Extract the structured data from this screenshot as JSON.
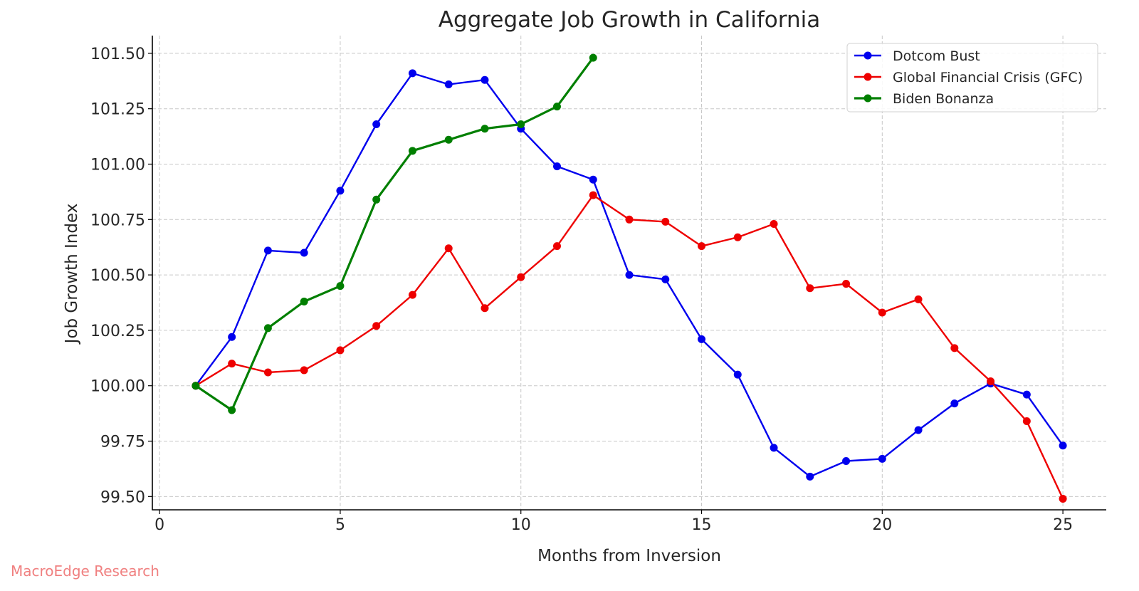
{
  "chart_data": {
    "type": "line",
    "title": "Aggregate Job Growth in California",
    "xlabel": "Months from Inversion",
    "ylabel": "Job Growth Index",
    "xlim": [
      -0.2,
      26.2
    ],
    "ylim": [
      99.44,
      101.58
    ],
    "xticks": [
      0,
      5,
      10,
      15,
      20,
      25
    ],
    "yticks": [
      99.5,
      99.75,
      100.0,
      100.25,
      100.5,
      100.75,
      101.0,
      101.25,
      101.5
    ],
    "ytick_labels": [
      "99.50",
      "99.75",
      "100.00",
      "100.25",
      "100.50",
      "100.75",
      "101.00",
      "101.25",
      "101.50"
    ],
    "grid": true,
    "legend_position": "top-right",
    "series": [
      {
        "name": "Dotcom Bust",
        "color": "#0000ee",
        "line_width": "normal",
        "x": [
          1,
          2,
          3,
          4,
          5,
          6,
          7,
          8,
          9,
          10,
          11,
          12,
          13,
          14,
          15,
          16,
          17,
          18,
          19,
          20,
          21,
          22,
          23,
          24,
          25
        ],
        "y": [
          100.0,
          100.22,
          100.61,
          100.6,
          100.88,
          101.18,
          101.41,
          101.36,
          101.38,
          101.16,
          100.99,
          100.93,
          100.5,
          100.48,
          100.21,
          100.05,
          99.72,
          99.59,
          99.66,
          99.67,
          99.8,
          99.92,
          100.01,
          99.96,
          99.73
        ]
      },
      {
        "name": "Global Financial Crisis (GFC)",
        "color": "#ee0000",
        "line_width": "normal",
        "x": [
          1,
          2,
          3,
          4,
          5,
          6,
          7,
          8,
          9,
          10,
          11,
          12,
          13,
          14,
          15,
          16,
          17,
          18,
          19,
          20,
          21,
          22,
          23,
          24,
          25
        ],
        "y": [
          100.0,
          100.1,
          100.06,
          100.07,
          100.16,
          100.27,
          100.41,
          100.62,
          100.35,
          100.49,
          100.63,
          100.86,
          100.75,
          100.74,
          100.63,
          100.67,
          100.73,
          100.44,
          100.46,
          100.33,
          100.39,
          100.17,
          100.02,
          99.84,
          99.49
        ]
      },
      {
        "name": "Biden Bonanza",
        "color": "#007f00",
        "line_width": "thick",
        "x": [
          1,
          2,
          3,
          4,
          5,
          6,
          7,
          8,
          9,
          10,
          11,
          12
        ],
        "y": [
          100.0,
          99.89,
          100.26,
          100.38,
          100.45,
          100.84,
          101.06,
          101.11,
          101.16,
          101.18,
          101.26,
          101.48
        ]
      }
    ]
  },
  "watermark": "MacroEdge Research"
}
